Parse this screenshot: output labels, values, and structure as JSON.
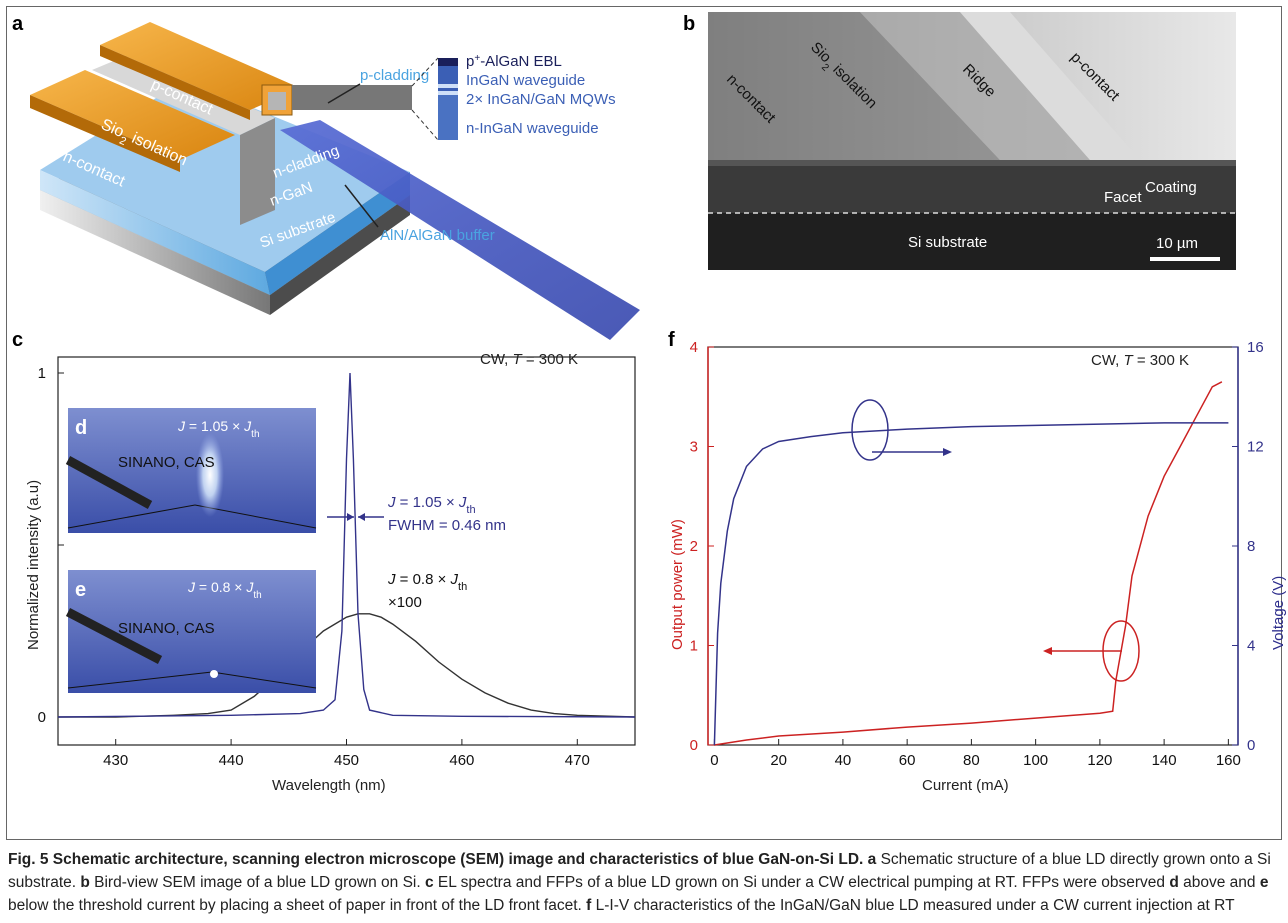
{
  "panels": {
    "a": "a",
    "b": "b",
    "c": "c",
    "d": "d",
    "e": "e",
    "f": "f"
  },
  "panel_a": {
    "p_contact": "p-contact",
    "sio2_isolation_1": "Sio",
    "sio2_isolation_sub": "2",
    "sio2_isolation_2": " isolation",
    "n_contact": "n-contact",
    "n_cladding": "n-cladding",
    "n_gan": "n-GaN",
    "si_substrate": "Si substrate",
    "p_cladding": "p-cladding",
    "aln_buffer": "AlN/AlGaN buffer",
    "stack_ebl_pre": "p",
    "stack_ebl_sup": "+",
    "stack_ebl_post": "-AlGaN EBL",
    "stack_waveguide": "InGaN waveguide",
    "stack_mqw": "2× InGaN/GaN MQWs",
    "stack_n_waveguide": "n-InGaN waveguide"
  },
  "panel_b": {
    "n_contact": "n-contact",
    "sio2_1": "Sio",
    "sio2_sub": "2",
    "sio2_2": " isolation",
    "ridge": "Ridge",
    "p_contact": "p-contact",
    "coating": "Coating",
    "facet": "Facet",
    "si_substrate": "Si substrate",
    "scale": "10 µm"
  },
  "panel_c": {
    "condition_prefix": "CW, ",
    "condition_T": "T",
    "condition_suffix": " = 300 K",
    "ylabel": "Normalized intensity (a.u)",
    "xlabel": "Wavelength (nm)",
    "inset_d_label_J": "J",
    "inset_d_label_mid": " = 1.05 × ",
    "inset_d_label_Jth": "J",
    "inset_d_label_th": "th",
    "inset_d_text": "SINANO, CAS",
    "inset_e_label_J": "J",
    "inset_e_label_mid": " = 0.8 × ",
    "inset_e_label_Jth": "J",
    "inset_e_label_th": "th",
    "inset_e_text": "SINANO, CAS",
    "ann_blue_J": "J",
    "ann_blue_mid": " = 1.05 × ",
    "ann_blue_Jth": "J",
    "ann_blue_th": "th",
    "ann_fwhm": "FWHM = 0.46 nm",
    "ann_black_J": "J",
    "ann_black_mid": " = 0.8 × ",
    "ann_black_Jth": "J",
    "ann_black_th": "th",
    "ann_x100": "×100"
  },
  "panel_f": {
    "condition_prefix": "CW, ",
    "condition_T": "T",
    "condition_suffix": " = 300 K",
    "ylabel_left": "Output power (mW)",
    "ylabel_right": "Voltage (V)",
    "xlabel": "Current (mA)"
  },
  "colors": {
    "blue_curve": "#33338a",
    "black_curve": "#333333",
    "red_curve": "#cc2222",
    "right_axis": "#2d2d8c",
    "left_axis": "#cc2222"
  },
  "chart_data": [
    {
      "type": "line",
      "panel": "c",
      "xlabel": "Wavelength (nm)",
      "ylabel": "Normalized intensity (a.u)",
      "xlim": [
        425,
        475
      ],
      "ylim": [
        0,
        1
      ],
      "x_ticks": [
        430,
        440,
        450,
        460,
        470
      ],
      "y_ticks": [
        0,
        1
      ],
      "series": [
        {
          "name": "J = 0.8 × Jth ×100",
          "color": "#333333",
          "x": [
            425,
            430,
            435,
            438,
            440,
            442,
            444,
            446,
            448,
            450,
            451,
            452,
            453,
            454,
            456,
            458,
            460,
            462,
            464,
            466,
            468,
            470,
            475
          ],
          "y": [
            0,
            0,
            0.005,
            0.01,
            0.02,
            0.06,
            0.12,
            0.19,
            0.25,
            0.29,
            0.3,
            0.3,
            0.29,
            0.27,
            0.22,
            0.16,
            0.11,
            0.07,
            0.04,
            0.02,
            0.01,
            0.005,
            0
          ]
        },
        {
          "name": "J = 1.05 × Jth",
          "color": "#33338a",
          "x": [
            425,
            440,
            446,
            448,
            449,
            449.6,
            450,
            450.3,
            450.6,
            451,
            451.5,
            452,
            454,
            460,
            475
          ],
          "y": [
            0,
            0.005,
            0.01,
            0.02,
            0.05,
            0.25,
            0.75,
            1.0,
            0.75,
            0.3,
            0.08,
            0.02,
            0.005,
            0.002,
            0
          ]
        }
      ],
      "annotations": [
        "CW, T = 300 K",
        "J = 1.05 × Jth",
        "FWHM = 0.46 nm",
        "J = 0.8 × Jth ×100"
      ]
    },
    {
      "type": "line",
      "panel": "f",
      "xlabel": "Current (mA)",
      "ylabel_left": "Output power (mW)",
      "ylabel_right": "Voltage (V)",
      "xlim": [
        -2,
        163
      ],
      "ylim_left": [
        0,
        4
      ],
      "ylim_right": [
        0,
        16
      ],
      "x_ticks": [
        0,
        20,
        40,
        60,
        80,
        100,
        120,
        140,
        160
      ],
      "y_ticks_left": [
        0,
        1,
        2,
        3,
        4
      ],
      "y_ticks_right": [
        0,
        4,
        8,
        12,
        16
      ],
      "series": [
        {
          "name": "Output power",
          "axis": "left",
          "color": "#cc2222",
          "x": [
            0,
            10,
            20,
            40,
            60,
            80,
            100,
            120,
            124,
            125,
            128,
            130,
            135,
            140,
            145,
            150,
            155,
            158
          ],
          "y": [
            0,
            0.05,
            0.09,
            0.13,
            0.18,
            0.22,
            0.27,
            0.32,
            0.34,
            0.65,
            1.2,
            1.7,
            2.3,
            2.7,
            3.0,
            3.3,
            3.6,
            3.65
          ]
        },
        {
          "name": "Voltage",
          "axis": "right",
          "color": "#33338a",
          "x": [
            0,
            1,
            2,
            4,
            6,
            10,
            15,
            20,
            30,
            40,
            60,
            80,
            100,
            120,
            140,
            160
          ],
          "y": [
            0,
            4.5,
            6.5,
            8.6,
            9.9,
            11.2,
            11.9,
            12.2,
            12.4,
            12.55,
            12.7,
            12.8,
            12.85,
            12.9,
            12.95,
            12.95
          ]
        }
      ],
      "annotations": [
        "CW, T = 300 K"
      ]
    }
  ],
  "caption": {
    "fig": "Fig. 5",
    "title": " Schematic architecture, scanning electron microscope (SEM) image and characteristics of blue GaN-on-Si LD.",
    "a": " a",
    "a_text": " Schematic structure of a blue LD directly grown onto a Si substrate.",
    "b": " b",
    "b_text": " Bird-view SEM image of a blue LD grown on Si.",
    "c": " c",
    "c_text": " EL spectra and FFPs of a blue LD grown on Si under a CW electrical pumping at RT. FFPs were observed",
    "d": " d",
    "d_text": " above and",
    "e": " e",
    "e_text": " below the threshold current by placing a sheet of paper in front of the LD front facet.",
    "f": " f",
    "f_text": " L-I-V characteristics of the InGaN/GaN blue LD measured under a CW current injection at RT"
  }
}
